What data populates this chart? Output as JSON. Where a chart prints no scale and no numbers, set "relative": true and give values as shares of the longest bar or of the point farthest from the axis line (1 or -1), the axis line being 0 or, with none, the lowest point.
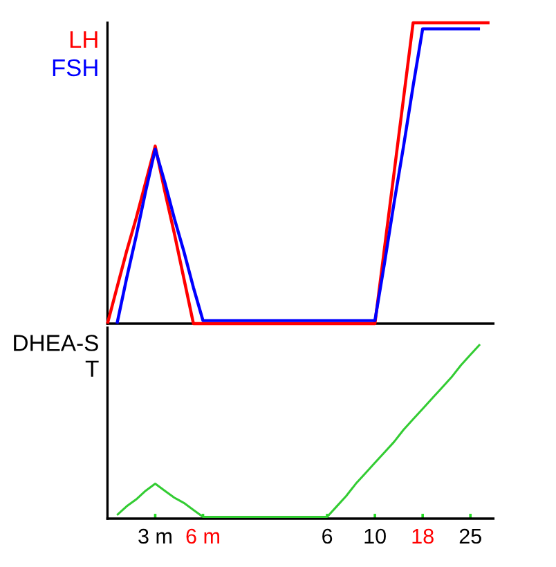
{
  "chart_data": [
    {
      "type": "line",
      "relative": true,
      "tick_labels": false,
      "categories": [
        null,
        null,
        null,
        null,
        null,
        null,
        null,
        null,
        null,
        null,
        null,
        null,
        null,
        null,
        null,
        null,
        null,
        null,
        null,
        null,
        null,
        null,
        null,
        null,
        null,
        null,
        null,
        null,
        null,
        null,
        null,
        null,
        null,
        null,
        null,
        null,
        null,
        null,
        null,
        null,
        null
      ],
      "series": [
        {
          "name": "LH",
          "color": "#ff0000",
          "values": [
            0,
            0.12,
            0.24,
            0.35,
            0.47,
            0.59,
            0.44,
            0.3,
            0.15,
            0,
            0,
            0,
            0,
            0,
            0,
            0,
            0,
            0,
            0,
            0,
            0,
            0,
            0,
            0,
            0,
            0,
            0,
            0,
            0,
            0.25,
            0.5,
            0.75,
            1,
            1,
            1,
            1,
            1,
            1,
            1,
            1,
            1
          ]
        },
        {
          "name": "FSH",
          "color": "#0000ff",
          "values": [
            null,
            0,
            0.15,
            0.29,
            0.44,
            0.58,
            0.47,
            0.35,
            0.24,
            0.12,
            0.01,
            0.01,
            0.01,
            0.01,
            0.01,
            0.01,
            0.01,
            0.01,
            0.01,
            0.01,
            0.01,
            0.01,
            0.01,
            0.01,
            0.01,
            0.01,
            0.01,
            0.01,
            0.01,
            0.2,
            0.4,
            0.59,
            0.79,
            0.98,
            0.98,
            0.98,
            0.98,
            0.98,
            0.98,
            0.98,
            null
          ]
        }
      ]
    },
    {
      "type": "line",
      "relative": true,
      "ylabel": "DHEA-S\nT",
      "tick_labels": "x",
      "categories": [
        null,
        null,
        null,
        null,
        null,
        "3 m",
        null,
        null,
        null,
        null,
        "6 m",
        null,
        null,
        null,
        null,
        null,
        null,
        null,
        null,
        null,
        null,
        null,
        null,
        "6",
        null,
        null,
        null,
        null,
        "10",
        null,
        null,
        null,
        null,
        "18",
        null,
        null,
        null,
        null,
        "25",
        null,
        null
      ],
      "series": [
        {
          "color": "#33cc33",
          "values": [
            null,
            0.02,
            0.07,
            0.11,
            0.16,
            0.2,
            0.16,
            0.12,
            0.09,
            0.05,
            0.01,
            0.01,
            0.01,
            0.01,
            0.01,
            0.01,
            0.01,
            0.01,
            0.01,
            0.01,
            0.01,
            0.01,
            0.01,
            0.01,
            0.07,
            0.13,
            0.2,
            0.26,
            0.32,
            0.38,
            0.44,
            0.51,
            0.57,
            0.63,
            0.69,
            0.75,
            0.81,
            0.88,
            0.94,
            1,
            null
          ]
        }
      ]
    }
  ]
}
